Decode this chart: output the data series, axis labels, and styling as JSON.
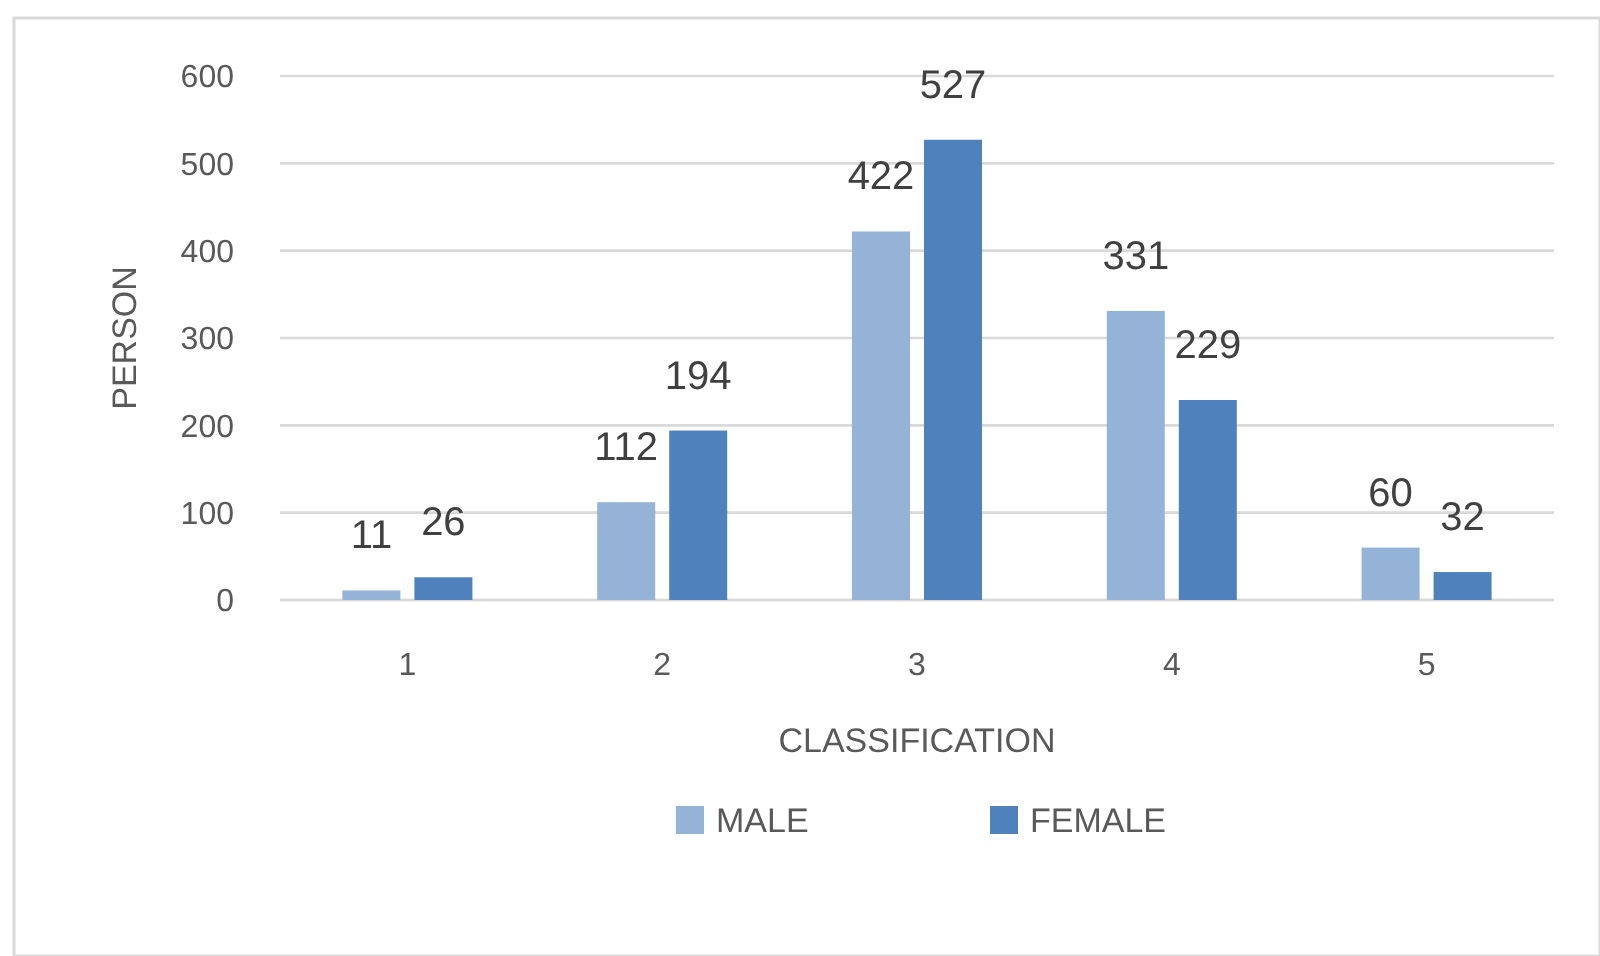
{
  "chart_data": {
    "type": "bar",
    "xlabel": "CLASSIFICATION",
    "ylabel": "PERSON",
    "categories": [
      "1",
      "2",
      "3",
      "4",
      "5"
    ],
    "series": [
      {
        "name": "MALE",
        "color": "#95b3d7",
        "values": [
          11,
          112,
          422,
          331,
          60
        ]
      },
      {
        "name": "FEMALE",
        "color": "#4f81bd",
        "values": [
          26,
          194,
          527,
          229,
          32
        ]
      }
    ],
    "ylim": [
      0,
      600
    ],
    "yticks": [
      0,
      100,
      200,
      300,
      400,
      500,
      600
    ],
    "grid": "y",
    "legend": "bottom",
    "data_labels": true
  }
}
